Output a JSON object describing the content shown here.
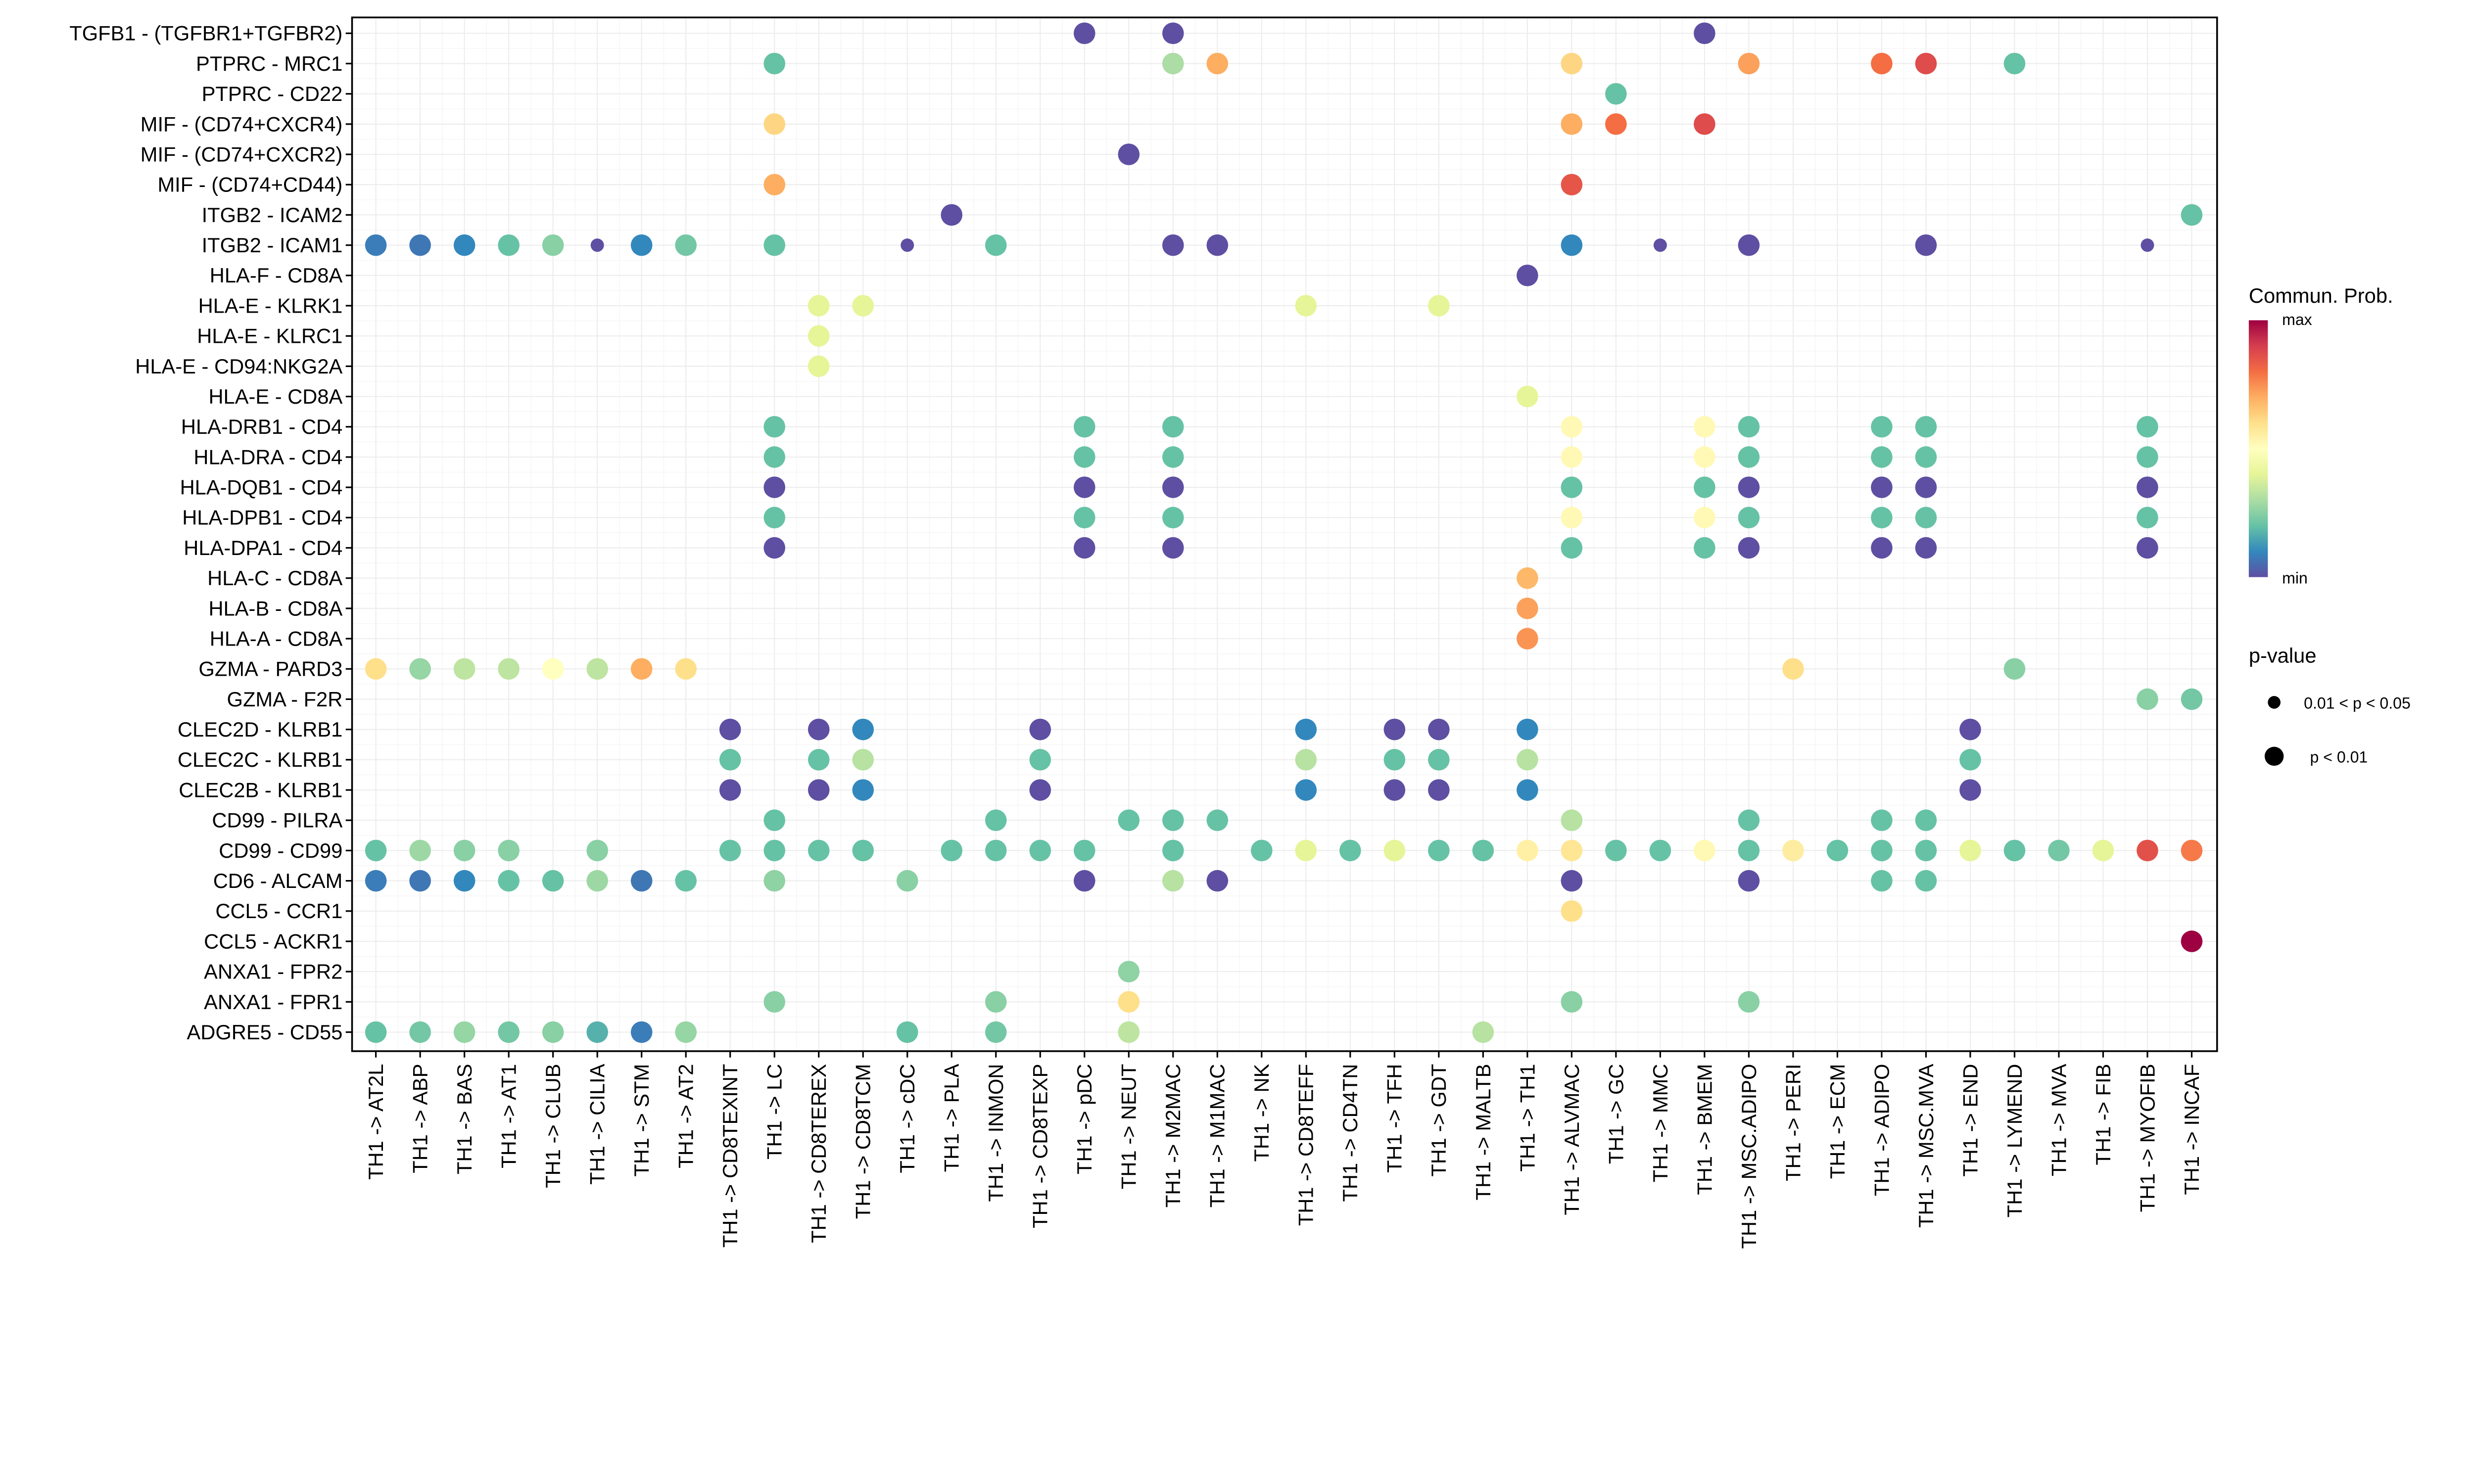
{
  "chart_data": {
    "type": "scatter",
    "subtype": "bubble-dotplot",
    "title": "",
    "xlabel": "",
    "ylabel": "",
    "grid": true,
    "x_categories": [
      "TH1 -> AT2L",
      "TH1 -> ABP",
      "TH1 -> BAS",
      "TH1 -> AT1",
      "TH1 -> CLUB",
      "TH1 -> CILIA",
      "TH1 -> STM",
      "TH1 -> AT2",
      "TH1 -> CD8TEXINT",
      "TH1 -> LC",
      "TH1 -> CD8TEREX",
      "TH1 -> CD8TCM",
      "TH1 -> cDC",
      "TH1 -> PLA",
      "TH1 -> INMON",
      "TH1 -> CD8TEXP",
      "TH1 -> pDC",
      "TH1 -> NEUT",
      "TH1 -> M2MAC",
      "TH1 -> M1MAC",
      "TH1 -> NK",
      "TH1 -> CD8TEFF",
      "TH1 -> CD4TN",
      "TH1 -> TFH",
      "TH1 -> GDT",
      "TH1 -> MALTB",
      "TH1 -> TH1",
      "TH1 -> ALVMAC",
      "TH1 -> GC",
      "TH1 -> MMC",
      "TH1 -> BMEM",
      "TH1 -> MSC.ADIPO",
      "TH1 -> PERI",
      "TH1 -> ECM",
      "TH1 -> ADIPO",
      "TH1 -> MSC.MVA",
      "TH1 -> END",
      "TH1 -> LYMEND",
      "TH1 -> MVA",
      "TH1 -> FIB",
      "TH1 -> MYOFIB",
      "TH1 -> INCAF"
    ],
    "y_categories_top_to_bottom": [
      "TGFB1 - (TGFBR1+TGFBR2)",
      "PTPRC - MRC1",
      "PTPRC - CD22",
      "MIF - (CD74+CXCR4)",
      "MIF - (CD74+CXCR2)",
      "MIF - (CD74+CD44)",
      "ITGB2 - ICAM2",
      "ITGB2 - ICAM1",
      "HLA-F - CD8A",
      "HLA-E - KLRK1",
      "HLA-E - KLRC1",
      "HLA-E - CD94:NKG2A",
      "HLA-E - CD8A",
      "HLA-DRB1 - CD4",
      "HLA-DRA - CD4",
      "HLA-DQB1 - CD4",
      "HLA-DPB1 - CD4",
      "HLA-DPA1 - CD4",
      "HLA-C - CD8A",
      "HLA-B - CD8A",
      "HLA-A - CD8A",
      "GZMA - PARD3",
      "GZMA - F2R",
      "CLEC2D - KLRB1",
      "CLEC2C - KLRB1",
      "CLEC2B - KLRB1",
      "CD99 - PILRA",
      "CD99 - CD99",
      "CD6 - ALCAM",
      "CCL5 - CCR1",
      "CCL5 - ACKR1",
      "ANXA1 - FPR2",
      "ANXA1 - FPR1",
      "ADGRE5 - CD55"
    ],
    "point_format": [
      "y_index",
      "x_index",
      "commun_prob_normalized_0_min_1_max",
      "pvalue_class (1: p < 0.01, 0: 0.01 < p < 0.05)"
    ],
    "points": [
      [
        0,
        16,
        0,
        1
      ],
      [
        0,
        18,
        0,
        1
      ],
      [
        0,
        30,
        0,
        1
      ],
      [
        1,
        9,
        0.2,
        1
      ],
      [
        1,
        18,
        0.3,
        1
      ],
      [
        1,
        19,
        0.7,
        1
      ],
      [
        1,
        27,
        0.62,
        1
      ],
      [
        1,
        31,
        0.72,
        1
      ],
      [
        1,
        34,
        0.8,
        1
      ],
      [
        1,
        35,
        0.87,
        1
      ],
      [
        1,
        37,
        0.2,
        1
      ],
      [
        2,
        28,
        0.2,
        1
      ],
      [
        3,
        9,
        0.62,
        1
      ],
      [
        3,
        27,
        0.7,
        1
      ],
      [
        3,
        28,
        0.8,
        1
      ],
      [
        3,
        30,
        0.87,
        1
      ],
      [
        4,
        17,
        0,
        1
      ],
      [
        5,
        9,
        0.7,
        1
      ],
      [
        5,
        27,
        0.85,
        1
      ],
      [
        6,
        13,
        0,
        1
      ],
      [
        6,
        41,
        0.2,
        1
      ],
      [
        7,
        0,
        0.08,
        1
      ],
      [
        7,
        1,
        0.07,
        1
      ],
      [
        7,
        2,
        0.1,
        1
      ],
      [
        7,
        3,
        0.2,
        1
      ],
      [
        7,
        4,
        0.25,
        1
      ],
      [
        7,
        5,
        0,
        0
      ],
      [
        7,
        6,
        0.1,
        1
      ],
      [
        7,
        7,
        0.22,
        1
      ],
      [
        7,
        9,
        0.2,
        1
      ],
      [
        7,
        12,
        0,
        0
      ],
      [
        7,
        14,
        0.2,
        1
      ],
      [
        7,
        18,
        0,
        1
      ],
      [
        7,
        19,
        0,
        1
      ],
      [
        7,
        27,
        0.1,
        1
      ],
      [
        7,
        29,
        0,
        0
      ],
      [
        7,
        31,
        0,
        1
      ],
      [
        7,
        35,
        0,
        1
      ],
      [
        7,
        40,
        0,
        0
      ],
      [
        8,
        26,
        0,
        1
      ],
      [
        9,
        10,
        0.4,
        1
      ],
      [
        9,
        11,
        0.4,
        1
      ],
      [
        9,
        21,
        0.4,
        1
      ],
      [
        9,
        24,
        0.4,
        1
      ],
      [
        10,
        10,
        0.4,
        1
      ],
      [
        11,
        10,
        0.4,
        1
      ],
      [
        12,
        26,
        0.4,
        1
      ],
      [
        13,
        9,
        0.2,
        1
      ],
      [
        13,
        16,
        0.2,
        1
      ],
      [
        13,
        18,
        0.2,
        1
      ],
      [
        13,
        27,
        0.52,
        1
      ],
      [
        13,
        30,
        0.52,
        1
      ],
      [
        13,
        31,
        0.2,
        1
      ],
      [
        13,
        34,
        0.2,
        1
      ],
      [
        13,
        35,
        0.2,
        1
      ],
      [
        13,
        40,
        0.2,
        1
      ],
      [
        14,
        9,
        0.2,
        1
      ],
      [
        14,
        16,
        0.2,
        1
      ],
      [
        14,
        18,
        0.2,
        1
      ],
      [
        14,
        27,
        0.52,
        1
      ],
      [
        14,
        30,
        0.52,
        1
      ],
      [
        14,
        31,
        0.2,
        1
      ],
      [
        14,
        34,
        0.2,
        1
      ],
      [
        14,
        35,
        0.2,
        1
      ],
      [
        14,
        40,
        0.2,
        1
      ],
      [
        15,
        9,
        0,
        1
      ],
      [
        15,
        16,
        0,
        1
      ],
      [
        15,
        18,
        0,
        1
      ],
      [
        15,
        27,
        0.2,
        1
      ],
      [
        15,
        30,
        0.2,
        1
      ],
      [
        15,
        31,
        0,
        1
      ],
      [
        15,
        34,
        0,
        1
      ],
      [
        15,
        35,
        0,
        1
      ],
      [
        15,
        40,
        0,
        1
      ],
      [
        16,
        9,
        0.2,
        1
      ],
      [
        16,
        16,
        0.2,
        1
      ],
      [
        16,
        18,
        0.2,
        1
      ],
      [
        16,
        27,
        0.52,
        1
      ],
      [
        16,
        30,
        0.52,
        1
      ],
      [
        16,
        31,
        0.2,
        1
      ],
      [
        16,
        34,
        0.2,
        1
      ],
      [
        16,
        35,
        0.2,
        1
      ],
      [
        16,
        40,
        0.2,
        1
      ],
      [
        17,
        9,
        0,
        1
      ],
      [
        17,
        16,
        0,
        1
      ],
      [
        17,
        18,
        0,
        1
      ],
      [
        17,
        27,
        0.2,
        1
      ],
      [
        17,
        30,
        0.2,
        1
      ],
      [
        17,
        31,
        0,
        1
      ],
      [
        17,
        34,
        0,
        1
      ],
      [
        17,
        35,
        0,
        1
      ],
      [
        17,
        40,
        0,
        1
      ],
      [
        18,
        26,
        0.68,
        1
      ],
      [
        19,
        26,
        0.72,
        1
      ],
      [
        20,
        26,
        0.74,
        1
      ],
      [
        21,
        0,
        0.6,
        1
      ],
      [
        21,
        1,
        0.27,
        1
      ],
      [
        21,
        2,
        0.33,
        1
      ],
      [
        21,
        3,
        0.33,
        1
      ],
      [
        21,
        4,
        0.5,
        1
      ],
      [
        21,
        5,
        0.33,
        1
      ],
      [
        21,
        6,
        0.7,
        1
      ],
      [
        21,
        7,
        0.6,
        1
      ],
      [
        21,
        32,
        0.6,
        1
      ],
      [
        21,
        37,
        0.25,
        1
      ],
      [
        22,
        40,
        0.25,
        1
      ],
      [
        22,
        41,
        0.22,
        1
      ],
      [
        23,
        8,
        0,
        1
      ],
      [
        23,
        10,
        0,
        1
      ],
      [
        23,
        11,
        0.1,
        1
      ],
      [
        23,
        15,
        0,
        1
      ],
      [
        23,
        21,
        0.1,
        1
      ],
      [
        23,
        23,
        0,
        1
      ],
      [
        23,
        24,
        0,
        1
      ],
      [
        23,
        26,
        0.1,
        1
      ],
      [
        23,
        36,
        0,
        1
      ],
      [
        24,
        8,
        0.2,
        1
      ],
      [
        24,
        10,
        0.2,
        1
      ],
      [
        24,
        11,
        0.32,
        1
      ],
      [
        24,
        15,
        0.2,
        1
      ],
      [
        24,
        21,
        0.32,
        1
      ],
      [
        24,
        23,
        0.2,
        1
      ],
      [
        24,
        24,
        0.2,
        1
      ],
      [
        24,
        26,
        0.32,
        1
      ],
      [
        24,
        36,
        0.2,
        1
      ],
      [
        25,
        8,
        0,
        1
      ],
      [
        25,
        10,
        0,
        1
      ],
      [
        25,
        11,
        0.1,
        1
      ],
      [
        25,
        15,
        0,
        1
      ],
      [
        25,
        21,
        0.1,
        1
      ],
      [
        25,
        23,
        0,
        1
      ],
      [
        25,
        24,
        0,
        1
      ],
      [
        25,
        26,
        0.1,
        1
      ],
      [
        25,
        36,
        0,
        1
      ],
      [
        26,
        9,
        0.2,
        1
      ],
      [
        26,
        14,
        0.2,
        1
      ],
      [
        26,
        17,
        0.2,
        1
      ],
      [
        26,
        18,
        0.2,
        1
      ],
      [
        26,
        19,
        0.2,
        1
      ],
      [
        26,
        27,
        0.32,
        1
      ],
      [
        26,
        31,
        0.2,
        1
      ],
      [
        26,
        34,
        0.2,
        1
      ],
      [
        26,
        35,
        0.2,
        1
      ],
      [
        27,
        0,
        0.2,
        1
      ],
      [
        27,
        1,
        0.28,
        1
      ],
      [
        27,
        2,
        0.25,
        1
      ],
      [
        27,
        3,
        0.25,
        1
      ],
      [
        27,
        5,
        0.25,
        1
      ],
      [
        27,
        8,
        0.2,
        1
      ],
      [
        27,
        9,
        0.2,
        1
      ],
      [
        27,
        10,
        0.2,
        1
      ],
      [
        27,
        11,
        0.2,
        1
      ],
      [
        27,
        13,
        0.2,
        1
      ],
      [
        27,
        14,
        0.2,
        1
      ],
      [
        27,
        15,
        0.2,
        1
      ],
      [
        27,
        16,
        0.2,
        1
      ],
      [
        27,
        18,
        0.2,
        1
      ],
      [
        27,
        20,
        0.2,
        1
      ],
      [
        27,
        21,
        0.4,
        1
      ],
      [
        27,
        22,
        0.2,
        1
      ],
      [
        27,
        23,
        0.4,
        1
      ],
      [
        27,
        24,
        0.2,
        1
      ],
      [
        27,
        25,
        0.2,
        1
      ],
      [
        27,
        26,
        0.55,
        1
      ],
      [
        27,
        27,
        0.58,
        1
      ],
      [
        27,
        28,
        0.2,
        1
      ],
      [
        27,
        29,
        0.2,
        1
      ],
      [
        27,
        30,
        0.52,
        1
      ],
      [
        27,
        31,
        0.2,
        1
      ],
      [
        27,
        32,
        0.56,
        1
      ],
      [
        27,
        33,
        0.2,
        1
      ],
      [
        27,
        34,
        0.2,
        1
      ],
      [
        27,
        35,
        0.2,
        1
      ],
      [
        27,
        36,
        0.4,
        1
      ],
      [
        27,
        37,
        0.2,
        1
      ],
      [
        27,
        38,
        0.22,
        1
      ],
      [
        27,
        39,
        0.4,
        1
      ],
      [
        27,
        40,
        0.86,
        1
      ],
      [
        27,
        41,
        0.78,
        1
      ],
      [
        28,
        0,
        0.08,
        1
      ],
      [
        28,
        1,
        0.07,
        1
      ],
      [
        28,
        2,
        0.1,
        1
      ],
      [
        28,
        3,
        0.2,
        1
      ],
      [
        28,
        4,
        0.2,
        1
      ],
      [
        28,
        5,
        0.28,
        1
      ],
      [
        28,
        6,
        0.07,
        1
      ],
      [
        28,
        7,
        0.2,
        1
      ],
      [
        28,
        9,
        0.26,
        1
      ],
      [
        28,
        12,
        0.25,
        1
      ],
      [
        28,
        16,
        0,
        1
      ],
      [
        28,
        18,
        0.32,
        1
      ],
      [
        28,
        19,
        0,
        1
      ],
      [
        28,
        27,
        0,
        1
      ],
      [
        28,
        31,
        0,
        1
      ],
      [
        28,
        34,
        0.2,
        1
      ],
      [
        28,
        35,
        0.2,
        1
      ],
      [
        29,
        27,
        0.6,
        1
      ],
      [
        30,
        41,
        1.0,
        1
      ],
      [
        31,
        17,
        0.26,
        1
      ],
      [
        32,
        9,
        0.25,
        1
      ],
      [
        32,
        14,
        0.25,
        1
      ],
      [
        32,
        17,
        0.6,
        1
      ],
      [
        32,
        27,
        0.25,
        1
      ],
      [
        32,
        31,
        0.25,
        1
      ],
      [
        33,
        0,
        0.2,
        1
      ],
      [
        33,
        1,
        0.22,
        1
      ],
      [
        33,
        2,
        0.27,
        1
      ],
      [
        33,
        3,
        0.22,
        1
      ],
      [
        33,
        4,
        0.25,
        1
      ],
      [
        33,
        5,
        0.17,
        1
      ],
      [
        33,
        6,
        0.08,
        1
      ],
      [
        33,
        7,
        0.27,
        1
      ],
      [
        33,
        12,
        0.2,
        1
      ],
      [
        33,
        14,
        0.22,
        1
      ],
      [
        33,
        17,
        0.33,
        1
      ],
      [
        33,
        25,
        0.32,
        1
      ]
    ],
    "color_scale": {
      "title": "Commun. Prob.",
      "max_label": "max",
      "min_label": "min",
      "stops": [
        "#5E4FA2",
        "#3288BD",
        "#66C2A5",
        "#ABDDA4",
        "#E6F598",
        "#FFFFBF",
        "#FEE08B",
        "#FDAE61",
        "#F46D43",
        "#D53E4F",
        "#9E0142"
      ]
    },
    "size_legend": {
      "title": "p-value",
      "items": [
        {
          "label": "0.01 < p < 0.05",
          "class": 0
        },
        {
          "label": "p < 0.01",
          "class": 1
        }
      ]
    },
    "legend_placement": "right"
  }
}
